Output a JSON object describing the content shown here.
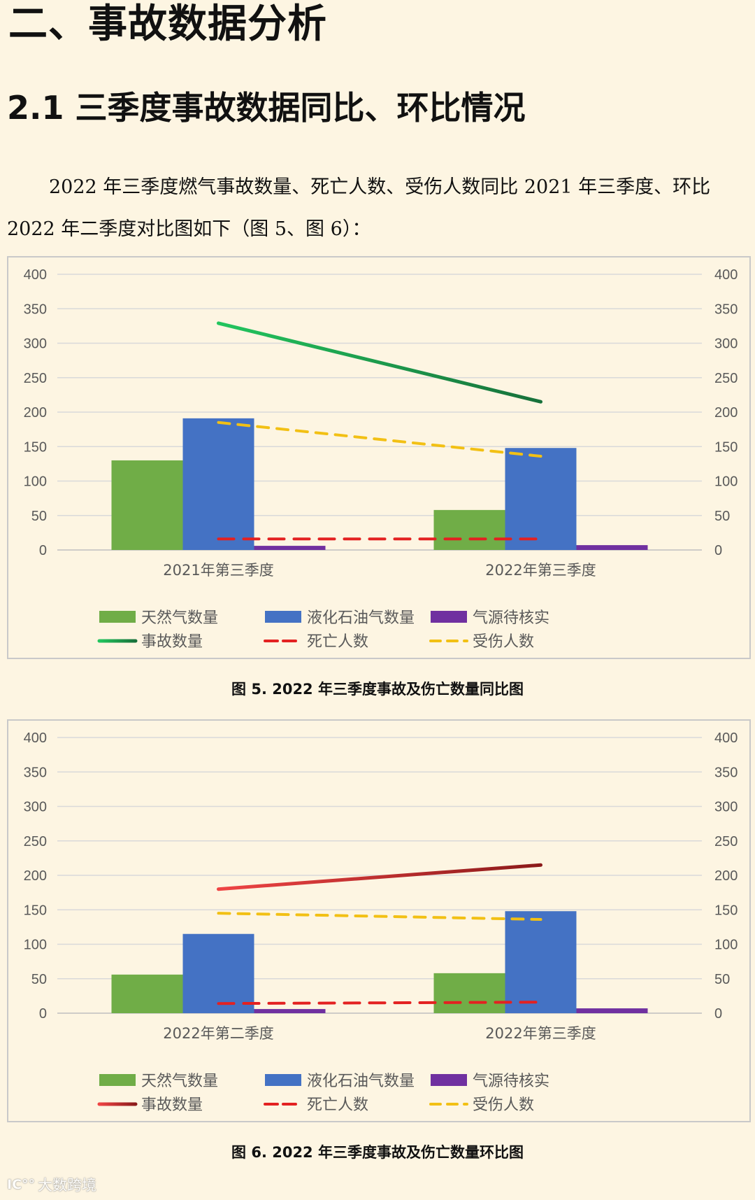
{
  "heading": "二、事故数据分析",
  "subheading": "2.1 三季度事故数据同比、环比情况",
  "paragraph": "2022 年三季度燃气事故数量、死亡人数、受伤人数同比 2021 年三季度、环比 2022 年二季度对比图如下（图 5、图 6）：",
  "watermark": {
    "logo": "ⅠC°°",
    "text": "大数跨境"
  },
  "legend_labels": [
    "天然气数量",
    "液化石油气数量",
    "气源待核实",
    "事故数量",
    "死亡人数",
    "受伤人数"
  ],
  "colors": {
    "natural_gas": "#70ad47",
    "lpg": "#4472c4",
    "pending": "#7030a0",
    "deaths": "#e32121",
    "injuries": "#f2c014",
    "grid": "#d9d9d9",
    "axis_text": "#595959"
  },
  "chart_data": [
    {
      "type": "bar",
      "caption": "图 5. 2022 年三季度事故及伤亡数量同比图",
      "categories": [
        "2021年第三季度",
        "2022年第三季度"
      ],
      "ylim": [
        0,
        400
      ],
      "yticks": [
        0,
        50,
        100,
        150,
        200,
        250,
        300,
        350,
        400
      ],
      "grid": true,
      "legend_position": "bottom",
      "bar_series": [
        {
          "name": "天然气数量",
          "values": [
            130,
            58
          ]
        },
        {
          "name": "液化石油气数量",
          "values": [
            191,
            148
          ]
        },
        {
          "name": "气源待核实",
          "values": [
            6,
            7
          ]
        }
      ],
      "line_series": [
        {
          "name": "事故数量",
          "values": [
            329,
            215
          ],
          "style": "solid",
          "colors": [
            "#22c55e",
            "#17703a"
          ]
        },
        {
          "name": "死亡人数",
          "values": [
            16,
            16
          ],
          "style": "dash"
        },
        {
          "name": "受伤人数",
          "values": [
            185,
            136
          ],
          "style": "dash"
        }
      ]
    },
    {
      "type": "bar",
      "caption": "图 6. 2022 年三季度事故及伤亡数量环比图",
      "categories": [
        "2022年第二季度",
        "2022年第三季度"
      ],
      "ylim": [
        0,
        400
      ],
      "yticks": [
        0,
        50,
        100,
        150,
        200,
        250,
        300,
        350,
        400
      ],
      "grid": true,
      "legend_position": "bottom",
      "bar_series": [
        {
          "name": "天然气数量",
          "values": [
            56,
            58
          ]
        },
        {
          "name": "液化石油气数量",
          "values": [
            115,
            148
          ]
        },
        {
          "name": "气源待核实",
          "values": [
            6,
            7
          ]
        }
      ],
      "line_series": [
        {
          "name": "事故数量",
          "values": [
            180,
            215
          ],
          "style": "solid",
          "colors": [
            "#ef4444",
            "#8b1a1a"
          ]
        },
        {
          "name": "死亡人数",
          "values": [
            14,
            16
          ],
          "style": "dash"
        },
        {
          "name": "受伤人数",
          "values": [
            145,
            136
          ],
          "style": "dash"
        }
      ]
    }
  ]
}
